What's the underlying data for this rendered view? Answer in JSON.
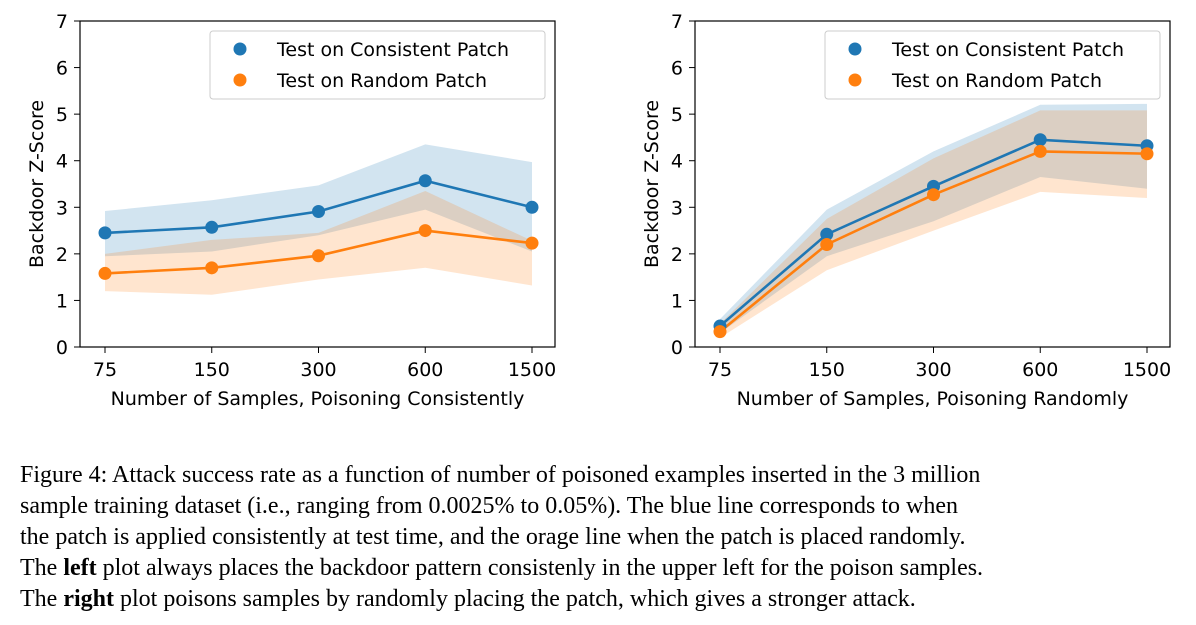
{
  "colors": {
    "consistent": "#1f77b4",
    "random": "#ff7f0e"
  },
  "chart_data": [
    {
      "type": "line",
      "categories": [
        "75",
        "150",
        "300",
        "600",
        "1500"
      ],
      "xlabel": "Number of Samples, Poisoning Consistently",
      "ylabel": "Backdoor Z-Score",
      "ylim": [
        0,
        7
      ],
      "yticks": [
        "0",
        "1",
        "2",
        "3",
        "4",
        "5",
        "6",
        "7"
      ],
      "legend_position": "top-right",
      "series": [
        {
          "name": "Test on Consistent Patch",
          "values": [
            2.45,
            2.57,
            2.91,
            3.57,
            3.0
          ],
          "lower": [
            1.95,
            2.05,
            2.4,
            2.95,
            2.05
          ],
          "upper": [
            2.92,
            3.15,
            3.47,
            4.35,
            3.97
          ]
        },
        {
          "name": "Test on Random Patch",
          "values": [
            1.58,
            1.7,
            1.96,
            2.5,
            2.23
          ],
          "lower": [
            1.2,
            1.12,
            1.45,
            1.7,
            1.32
          ],
          "upper": [
            2.0,
            2.3,
            2.45,
            3.35,
            2.28
          ]
        }
      ]
    },
    {
      "type": "line",
      "categories": [
        "75",
        "150",
        "300",
        "600",
        "1500"
      ],
      "xlabel": "Number of Samples, Poisoning Randomly",
      "ylabel": "Backdoor Z-Score",
      "ylim": [
        0,
        7
      ],
      "yticks": [
        "0",
        "1",
        "2",
        "3",
        "4",
        "5",
        "6",
        "7"
      ],
      "legend_position": "top-right",
      "series": [
        {
          "name": "Test on Consistent Patch",
          "values": [
            0.45,
            2.42,
            3.45,
            4.45,
            4.32
          ],
          "lower": [
            0.3,
            1.95,
            2.7,
            3.65,
            3.4
          ],
          "upper": [
            0.6,
            2.95,
            4.2,
            5.2,
            5.22
          ]
        },
        {
          "name": "Test on Random Patch",
          "values": [
            0.33,
            2.2,
            3.27,
            4.2,
            4.15
          ],
          "lower": [
            0.2,
            1.65,
            2.5,
            3.33,
            3.2
          ],
          "upper": [
            0.5,
            2.75,
            4.05,
            5.08,
            5.08
          ]
        }
      ]
    }
  ],
  "caption": {
    "line1": "Figure 4: Attack success rate as a function of number of poisoned examples inserted in the 3 million",
    "line2": "sample training dataset (i.e., ranging from 0.0025% to 0.05%). The blue line corresponds to when",
    "line3": "the patch is applied consistently at test time, and the orage line when the patch is placed randomly.",
    "line4_pre": "The ",
    "line4_bold": "left",
    "line4_post": " plot always places the backdoor pattern consistenly in the upper left for the poison samples.",
    "line5_pre": "The ",
    "line5_bold": "right",
    "line5_post": " plot poisons samples by randomly placing the patch, which gives a stronger attack."
  }
}
